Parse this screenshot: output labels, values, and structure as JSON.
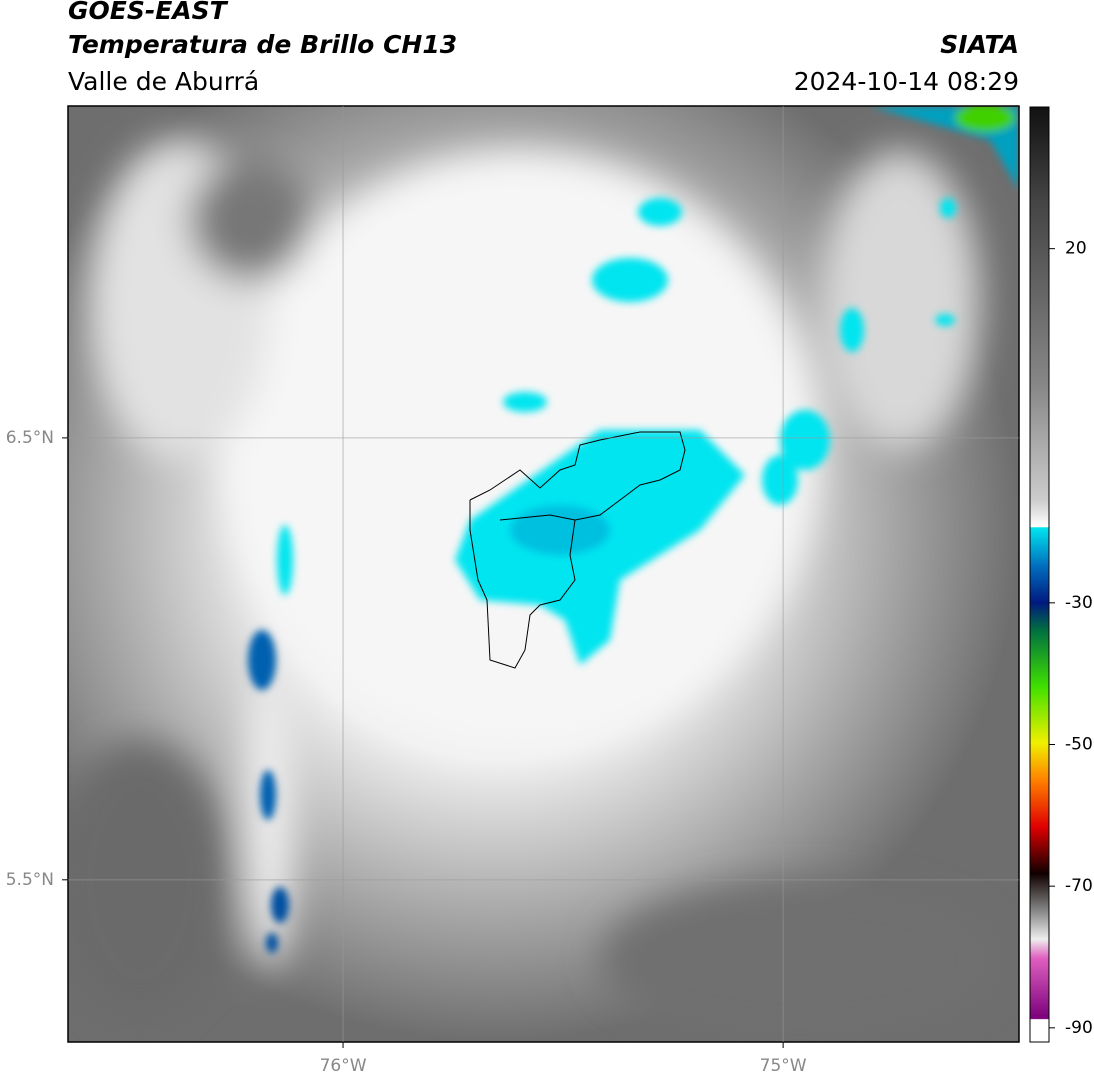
{
  "header": {
    "title": "GOES-EAST",
    "subtitle": "Temperatura de Brillo CH13",
    "region": "Valle de Aburrá",
    "source": "SIATA",
    "datetime": "2024-10-14 08:29"
  },
  "map": {
    "xlim": [
      -76.625,
      -74.464
    ],
    "ylim": [
      5.133,
      7.251
    ],
    "xticks": [
      {
        "value": -76,
        "label": "76°W"
      },
      {
        "value": -75,
        "label": "75°W"
      }
    ],
    "yticks": [
      {
        "value": 6.5,
        "label": "6.5°N"
      },
      {
        "value": 5.5,
        "label": "5.5°N"
      }
    ],
    "grid": true,
    "colorbar": {
      "lim": [
        -92,
        40
      ],
      "ticks": [
        20,
        -30,
        -50,
        -70,
        -90
      ]
    }
  }
}
